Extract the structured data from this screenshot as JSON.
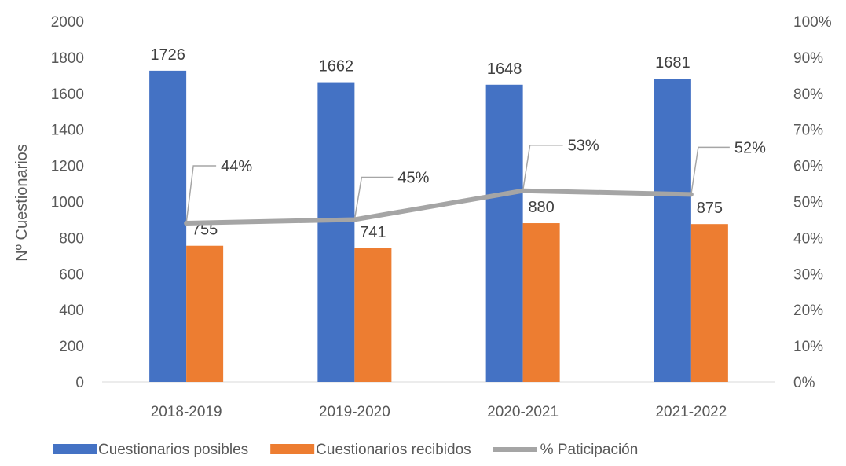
{
  "chart_data": {
    "type": "bar",
    "categories": [
      "2018-2019",
      "2019-2020",
      "2020-2021",
      "2021-2022"
    ],
    "series": [
      {
        "name": "Cuestionarios posibles",
        "kind": "bar",
        "axis": "left",
        "color": "#4472C4",
        "values": [
          1726,
          1662,
          1648,
          1681
        ],
        "labels": [
          "1726",
          "1662",
          "1648",
          "1681"
        ]
      },
      {
        "name": "Cuestionarios recibidos",
        "kind": "bar",
        "axis": "left",
        "color": "#ED7D31",
        "values": [
          755,
          741,
          880,
          875
        ],
        "labels": [
          "755",
          "741",
          "880",
          "875"
        ]
      },
      {
        "name": "% Paticipación",
        "kind": "line",
        "axis": "right",
        "color": "#A5A5A5",
        "values": [
          44,
          45,
          53,
          52
        ],
        "labels": [
          "44%",
          "45%",
          "53%",
          "52%"
        ]
      }
    ],
    "ylabel": "Nº Cuestionarios",
    "ylim": [
      0,
      2000
    ],
    "yticks": [
      "0",
      "200",
      "400",
      "600",
      "800",
      "1000",
      "1200",
      "1400",
      "1600",
      "1800",
      "2000"
    ],
    "y2lim": [
      0,
      100
    ],
    "y2ticks": [
      "0%",
      "10%",
      "20%",
      "30%",
      "40%",
      "50%",
      "60%",
      "70%",
      "80%",
      "90%",
      "100%"
    ],
    "grid": false,
    "legend": "bottom"
  }
}
